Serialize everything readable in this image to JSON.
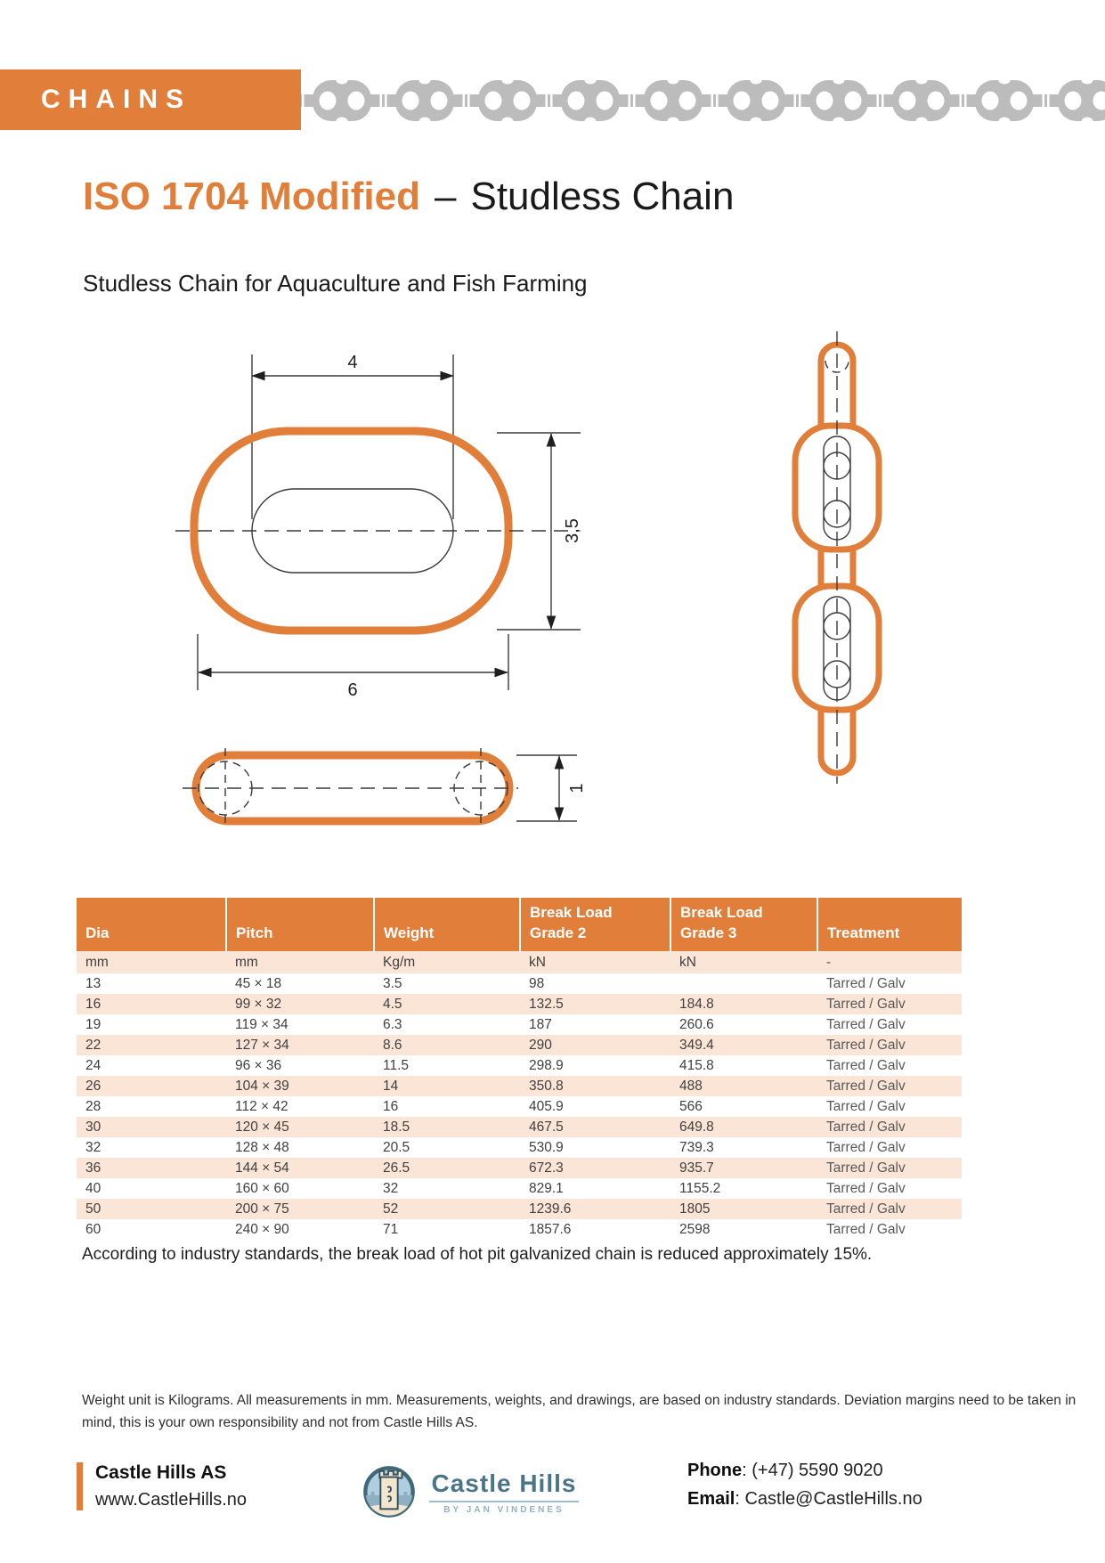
{
  "banner": {
    "label": "CHAINS"
  },
  "title": {
    "main": "ISO 1704 Modified",
    "sep": "–",
    "rest": "Studless Chain"
  },
  "subtitle": "Studless Chain for Aquaculture and Fish Farming",
  "diagram": {
    "dim_inner_width": "4",
    "dim_height": "3,5",
    "dim_outer_width": "6",
    "dim_thickness": "1"
  },
  "table": {
    "headers": [
      "Dia",
      "Pitch",
      "Weight",
      "Break Load\nGrade 2",
      "Break Load\nGrade 3",
      "Treatment"
    ],
    "units": [
      "mm",
      "mm",
      "Kg/m",
      "kN",
      "kN",
      "-"
    ],
    "rows": [
      [
        "13",
        "45 × 18",
        "3.5",
        "98",
        "",
        "Tarred / Galv"
      ],
      [
        "16",
        "99 × 32",
        "4.5",
        "132.5",
        "184.8",
        "Tarred / Galv"
      ],
      [
        "19",
        "119 × 34",
        "6.3",
        "187",
        "260.6",
        "Tarred / Galv"
      ],
      [
        "22",
        "127 × 34",
        "8.6",
        "290",
        "349.4",
        "Tarred / Galv"
      ],
      [
        "24",
        "96 × 36",
        "11.5",
        "298.9",
        "415.8",
        "Tarred / Galv"
      ],
      [
        "26",
        "104 × 39",
        "14",
        "350.8",
        "488",
        "Tarred / Galv"
      ],
      [
        "28",
        "112 × 42",
        "16",
        "405.9",
        "566",
        "Tarred / Galv"
      ],
      [
        "30",
        "120 × 45",
        "18.5",
        "467.5",
        "649.8",
        "Tarred / Galv"
      ],
      [
        "32",
        "128 × 48",
        "20.5",
        "530.9",
        "739.3",
        "Tarred / Galv"
      ],
      [
        "36",
        "144 × 54",
        "26.5",
        "672.3",
        "935.7",
        "Tarred / Galv"
      ],
      [
        "40",
        "160 × 60",
        "32",
        "829.1",
        "1155.2",
        "Tarred / Galv"
      ],
      [
        "50",
        "200 × 75",
        "52",
        "1239.6",
        "1805",
        "Tarred / Galv"
      ],
      [
        "60",
        "240 × 90",
        "71",
        "1857.6",
        "2598",
        "Tarred / Galv"
      ]
    ]
  },
  "note": "According to industry standards, the break load of hot pit galvanized chain is reduced approximately 15%.",
  "disclaimer": "Weight unit is Kilograms. All measurements in mm. Measurements, weights, and drawings, are based on industry standards. Deviation margins need to be taken in mind, this is your own responsibility and not from Castle Hills AS.",
  "footer": {
    "company": "Castle Hills AS",
    "website": "www.CastleHills.no",
    "logo_text": "Castle Hills",
    "logo_tagline": "BY JAN VINDENES",
    "phone": {
      "label": "Phone",
      "value": ": (+47) 5590 9020"
    },
    "email": {
      "label": "Email",
      "value": ": Castle@CastleHills.no"
    }
  },
  "colors": {
    "accent_orange": "#E07E3A",
    "row_tint": "#FBE5D6",
    "chain_gray": "#BCBCBC",
    "logo_blue": "#4A7589"
  }
}
